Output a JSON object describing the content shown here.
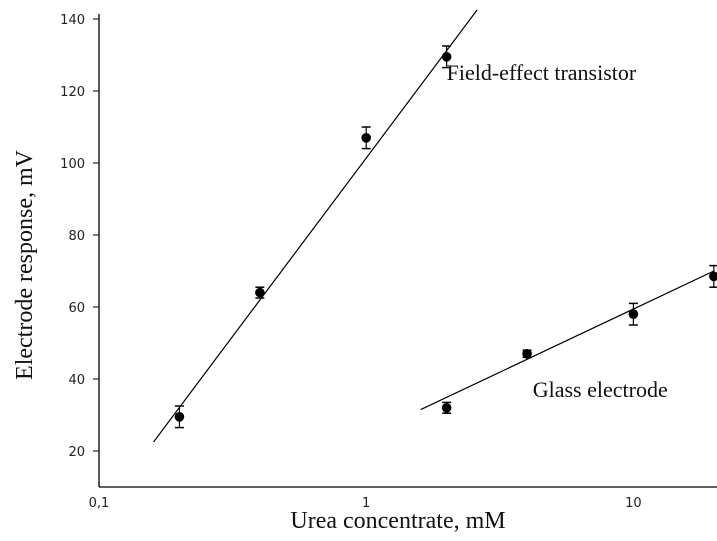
{
  "chart_data": {
    "type": "scatter",
    "xscale": "log",
    "xlabel": "Urea concentrate, mM",
    "ylabel": "Electrode response, mV",
    "xlim": [
      0.1,
      20
    ],
    "ylim": [
      10,
      150
    ],
    "grid": false,
    "xticks": [
      {
        "value": 0.1,
        "label": "0,1"
      },
      {
        "value": 1,
        "label": "1"
      },
      {
        "value": 10,
        "label": "10"
      }
    ],
    "yticks": [
      {
        "value": 20,
        "label": "20"
      },
      {
        "value": 40,
        "label": "40"
      },
      {
        "value": 60,
        "label": "60"
      },
      {
        "value": 80,
        "label": "80"
      },
      {
        "value": 100,
        "label": "100"
      },
      {
        "value": 120,
        "label": "120"
      },
      {
        "value": 140,
        "label": "140"
      }
    ],
    "series": [
      {
        "points": [
          {
            "x": 0.2,
            "y": 29.5,
            "err": 3
          },
          {
            "x": 0.4,
            "y": 64,
            "err": 1.5
          },
          {
            "x": 1,
            "y": 107,
            "err": 3
          },
          {
            "x": 2,
            "y": 129.5,
            "err": 3
          }
        ],
        "fit": [
          {
            "x": 0.16,
            "y": 22.5
          },
          {
            "x": 2.6,
            "y": 142.5
          }
        ]
      },
      {
        "points": [
          {
            "x": 2,
            "y": 32,
            "err": 1.5
          },
          {
            "x": 4,
            "y": 47,
            "err": 1
          },
          {
            "x": 10,
            "y": 58,
            "err": 3
          },
          {
            "x": 20,
            "y": 68.5,
            "err": 3
          }
        ],
        "fit": [
          {
            "x": 1.6,
            "y": 31.5
          },
          {
            "x": 20,
            "y": 70
          }
        ]
      }
    ],
    "annotations": [
      {
        "text": "Field-effect transistor",
        "x": 2,
        "y": 123
      },
      {
        "text": "Glass electrode",
        "x": 4.2,
        "y": 35
      }
    ]
  }
}
